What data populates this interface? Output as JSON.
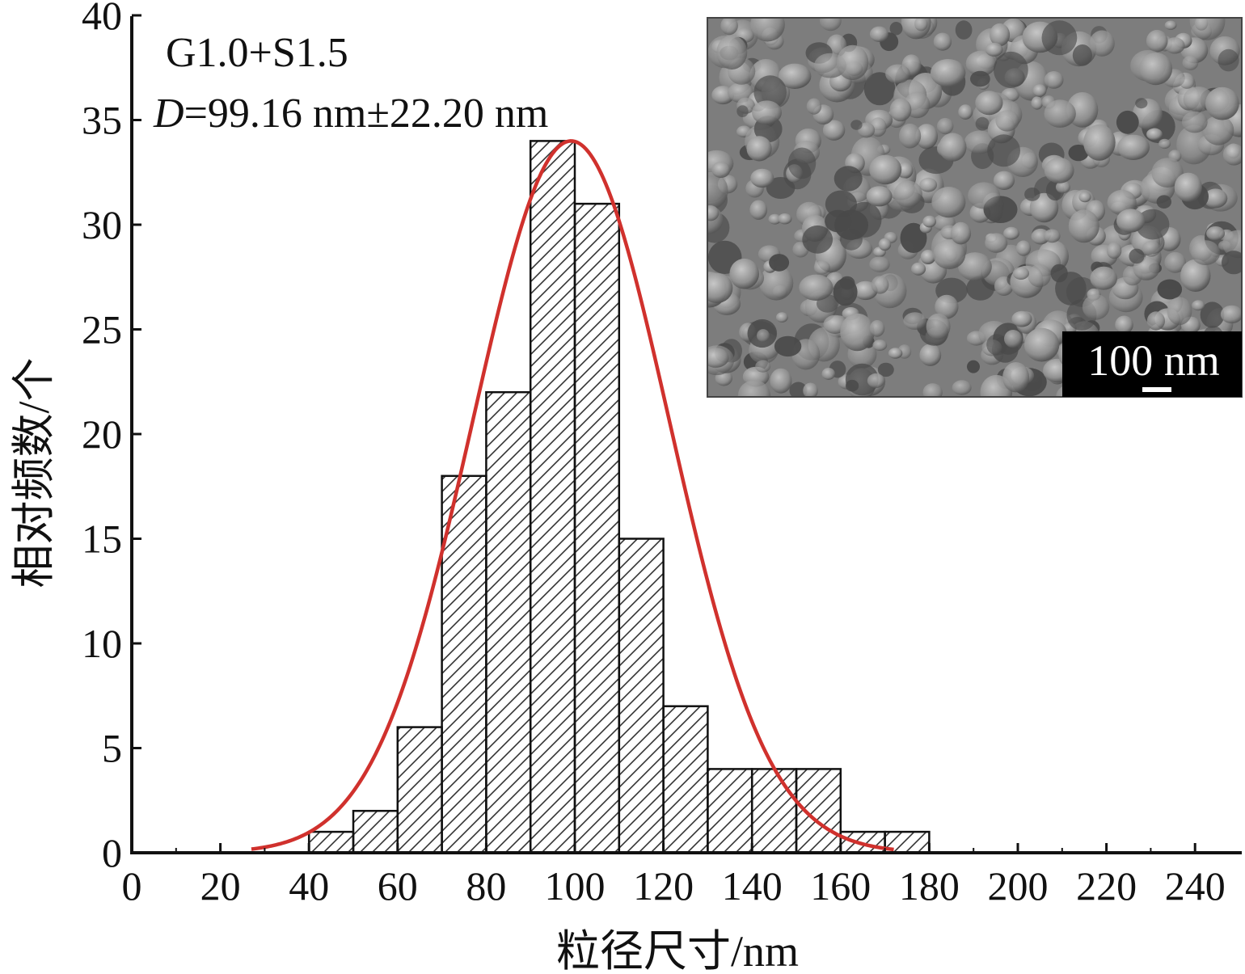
{
  "chart_data": {
    "type": "bar",
    "x_bin_edges": [
      40,
      50,
      60,
      70,
      80,
      90,
      100,
      110,
      120,
      130,
      140,
      150,
      160,
      170,
      180
    ],
    "values": [
      1,
      2,
      6,
      18,
      22,
      34,
      31,
      15,
      7,
      4,
      4,
      4,
      1,
      1
    ],
    "fit_curve": {
      "type": "gaussian",
      "mean": 99.16,
      "sigma": 22.2,
      "peak": 34,
      "x_range": [
        27,
        172
      ],
      "color": "#d0312d"
    },
    "xlabel": "粒径尺寸/nm",
    "ylabel": "相对频数/个",
    "xlim": [
      0,
      250
    ],
    "ylim": [
      0,
      40
    ],
    "x_ticks": [
      0,
      20,
      40,
      60,
      80,
      100,
      120,
      140,
      160,
      180,
      200,
      220,
      240
    ],
    "y_ticks": [
      0,
      5,
      10,
      15,
      20,
      25,
      30,
      35,
      40
    ],
    "annotation": {
      "sample": "G1.0+S1.5",
      "d_symbol": "D",
      "d_value": "=99.16 nm±22.20 nm"
    },
    "bar_style": "diagonal hatch, black outline",
    "grid": false
  },
  "inset": {
    "type": "SEM micrograph",
    "scale_bar_label": "100 nm"
  }
}
